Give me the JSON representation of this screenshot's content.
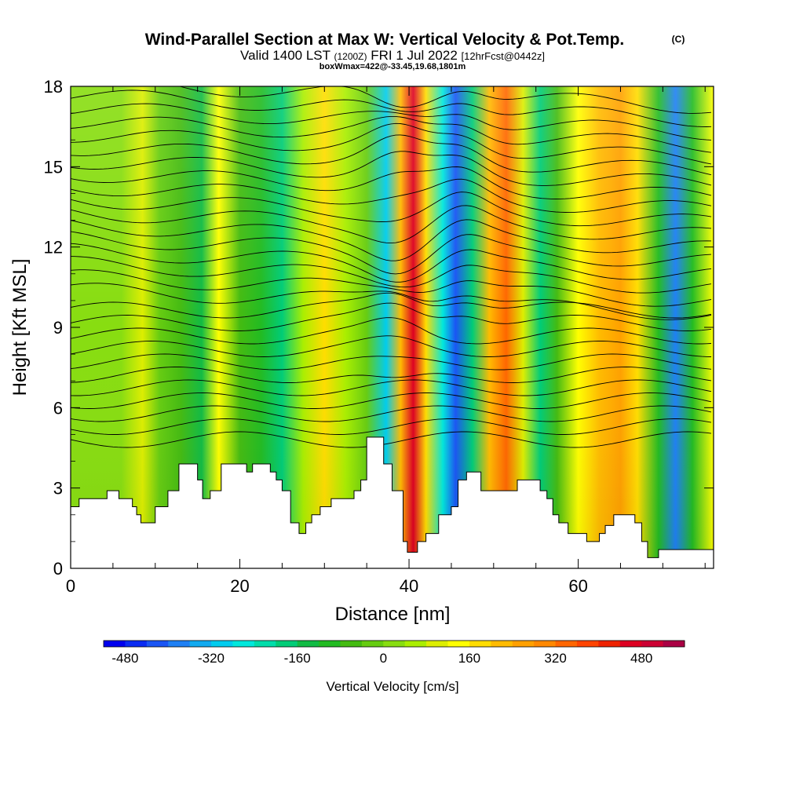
{
  "chart_data": {
    "type": "heatmap",
    "title": "Wind-Parallel Section at Max W: Vertical Velocity & Pot.Temp.",
    "title_mark": "(C)",
    "subtitle_main": "Valid 1400 LST",
    "subtitle_z": "(1200Z)",
    "subtitle_date": "FRI 1 Jul 2022",
    "subtitle_fcst": "[12hrFcst@0442z]",
    "subtitle_box": "boxWmax=422@-33.45,19.68,1801m",
    "xlabel": "Distance [nm]",
    "ylabel": "Height [Kft MSL]",
    "xlim": [
      0,
      76
    ],
    "ylim": [
      0,
      18
    ],
    "x_ticks": [
      {
        "value": 0,
        "label": "0"
      },
      {
        "value": 20,
        "label": "20"
      },
      {
        "value": 40,
        "label": "40"
      },
      {
        "value": 60,
        "label": "60"
      }
    ],
    "y_ticks": [
      {
        "value": 0,
        "label": "0"
      },
      {
        "value": 3,
        "label": "3"
      },
      {
        "value": 6,
        "label": "6"
      },
      {
        "value": 9,
        "label": "9"
      },
      {
        "value": 12,
        "label": "12"
      },
      {
        "value": 15,
        "label": "15"
      },
      {
        "value": 18,
        "label": "18"
      }
    ],
    "colorbar": {
      "label": "Vertical Velocity [cm/s]",
      "min": -520,
      "max": 560,
      "step": 40,
      "tick_labels": [
        {
          "value": -480,
          "label": "-480"
        },
        {
          "value": -320,
          "label": "-320"
        },
        {
          "value": -160,
          "label": "-160"
        },
        {
          "value": 0,
          "label": "0"
        },
        {
          "value": 160,
          "label": "160"
        },
        {
          "value": 320,
          "label": "320"
        },
        {
          "value": 480,
          "label": "480"
        }
      ],
      "colors": [
        "#0000ee",
        "#0a2bf2",
        "#1a55f4",
        "#1f80f4",
        "#12aaf0",
        "#00ccee",
        "#00e8dc",
        "#00ddaa",
        "#00cc77",
        "#11bb44",
        "#22bb22",
        "#44bb11",
        "#66cc11",
        "#88dd11",
        "#aaee00",
        "#ddee00",
        "#ffff00",
        "#ffdd00",
        "#ffbb00",
        "#ffa000",
        "#ff8800",
        "#ff6600",
        "#ff4400",
        "#ee2200",
        "#dd0022",
        "#cc0033",
        "#aa0044"
      ]
    },
    "velocity_columns": [
      {
        "x": 0,
        "w": 20
      },
      {
        "x": 3,
        "w": 0
      },
      {
        "x": 6,
        "w": 10
      },
      {
        "x": 8.5,
        "w": 90
      },
      {
        "x": 10.5,
        "w": -30
      },
      {
        "x": 13,
        "w": -80
      },
      {
        "x": 15.5,
        "w": -130
      },
      {
        "x": 17.5,
        "w": 120
      },
      {
        "x": 20,
        "w": -60
      },
      {
        "x": 22.5,
        "w": -110
      },
      {
        "x": 25,
        "w": -170
      },
      {
        "x": 27.5,
        "w": 60
      },
      {
        "x": 30,
        "w": 160
      },
      {
        "x": 32.5,
        "w": 40
      },
      {
        "x": 35,
        "w": -40
      },
      {
        "x": 37.3,
        "w": -300
      },
      {
        "x": 39,
        "w": 230
      },
      {
        "x": 40.5,
        "w": 470
      },
      {
        "x": 42,
        "w": 160
      },
      {
        "x": 44,
        "w": -260
      },
      {
        "x": 45.5,
        "w": -420
      },
      {
        "x": 47.5,
        "w": -190
      },
      {
        "x": 49.5,
        "w": 210
      },
      {
        "x": 51.5,
        "w": 330
      },
      {
        "x": 53.5,
        "w": 80
      },
      {
        "x": 55.5,
        "w": -200
      },
      {
        "x": 57.5,
        "w": -60
      },
      {
        "x": 60,
        "w": 120
      },
      {
        "x": 62.5,
        "w": 200
      },
      {
        "x": 65,
        "w": 260
      },
      {
        "x": 67,
        "w": 160
      },
      {
        "x": 69.5,
        "w": -120
      },
      {
        "x": 71.5,
        "w": -380
      },
      {
        "x": 73.5,
        "w": -120
      },
      {
        "x": 76,
        "w": 130
      }
    ],
    "terrain": [
      {
        "x": 0,
        "h": 2.3
      },
      {
        "x": 1,
        "h": 2.6
      },
      {
        "x": 4.3,
        "h": 2.9
      },
      {
        "x": 5.7,
        "h": 2.6
      },
      {
        "x": 7.3,
        "h": 2.3
      },
      {
        "x": 7.8,
        "h": 2.0
      },
      {
        "x": 8.3,
        "h": 1.7
      },
      {
        "x": 10,
        "h": 2.3
      },
      {
        "x": 11.5,
        "h": 2.9
      },
      {
        "x": 12.8,
        "h": 3.9
      },
      {
        "x": 15,
        "h": 3.3
      },
      {
        "x": 15.6,
        "h": 2.6
      },
      {
        "x": 16.5,
        "h": 2.9
      },
      {
        "x": 17.8,
        "h": 3.9
      },
      {
        "x": 20.8,
        "h": 3.6
      },
      {
        "x": 21.5,
        "h": 3.9
      },
      {
        "x": 23.6,
        "h": 3.6
      },
      {
        "x": 24.3,
        "h": 3.3
      },
      {
        "x": 25,
        "h": 2.9
      },
      {
        "x": 26,
        "h": 1.7
      },
      {
        "x": 27,
        "h": 1.3
      },
      {
        "x": 27.8,
        "h": 1.7
      },
      {
        "x": 28.5,
        "h": 2.0
      },
      {
        "x": 29.5,
        "h": 2.3
      },
      {
        "x": 30.8,
        "h": 2.6
      },
      {
        "x": 33.5,
        "h": 2.9
      },
      {
        "x": 34.3,
        "h": 3.3
      },
      {
        "x": 35,
        "h": 4.9
      },
      {
        "x": 37,
        "h": 3.9
      },
      {
        "x": 38,
        "h": 2.9
      },
      {
        "x": 39.3,
        "h": 1.0
      },
      {
        "x": 39.8,
        "h": 0.6
      },
      {
        "x": 41,
        "h": 1.0
      },
      {
        "x": 42,
        "h": 1.3
      },
      {
        "x": 43.5,
        "h": 2.0
      },
      {
        "x": 45,
        "h": 2.3
      },
      {
        "x": 45.8,
        "h": 3.3
      },
      {
        "x": 46.8,
        "h": 3.6
      },
      {
        "x": 48.5,
        "h": 2.9
      },
      {
        "x": 52.8,
        "h": 3.3
      },
      {
        "x": 55.5,
        "h": 2.9
      },
      {
        "x": 56.3,
        "h": 2.6
      },
      {
        "x": 57,
        "h": 2.0
      },
      {
        "x": 57.7,
        "h": 1.7
      },
      {
        "x": 58.8,
        "h": 1.3
      },
      {
        "x": 61,
        "h": 1.0
      },
      {
        "x": 62.5,
        "h": 1.3
      },
      {
        "x": 63.2,
        "h": 1.6
      },
      {
        "x": 64.2,
        "h": 2.0
      },
      {
        "x": 66.7,
        "h": 1.7
      },
      {
        "x": 67.5,
        "h": 1.0
      },
      {
        "x": 68.2,
        "h": 0.4
      },
      {
        "x": 69.5,
        "h": 0.7
      },
      {
        "x": 76,
        "h": 0.7
      }
    ]
  }
}
